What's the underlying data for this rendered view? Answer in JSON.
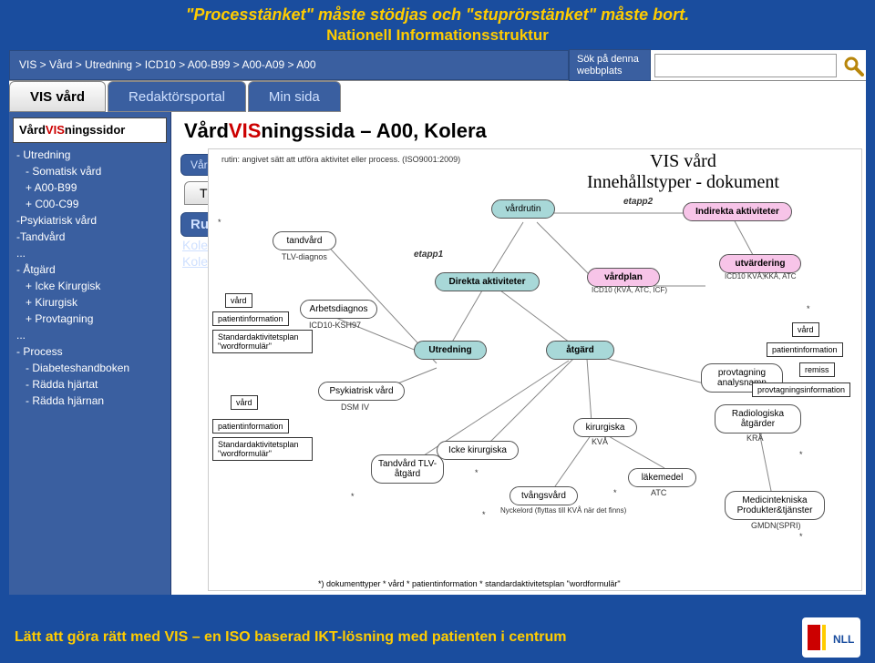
{
  "header": {
    "line1": "\"Processtänket\" måste stödjas och \"stuprörstänket\" måste bort.",
    "line2": "Nationell Informationsstruktur"
  },
  "breadcrumb": "VIS > Vård > Utredning > ICD10 > A00-B99 > A00-A09 > A00",
  "search": {
    "label": "Sök på denna webbplats",
    "value": ""
  },
  "tabs": [
    {
      "label": "VIS vård",
      "active": true
    },
    {
      "label": "Redaktörsportal",
      "active": false
    },
    {
      "label": "Min sida",
      "active": false
    }
  ],
  "sidebar": {
    "title_pre": "Vård",
    "title_mid": "VIS",
    "title_post": "ningssidor",
    "items": [
      {
        "text": "- Utredning",
        "indent": 0
      },
      {
        "text": "- Somatisk vård",
        "indent": 1
      },
      {
        "text": "+ A00-B99",
        "indent": 1
      },
      {
        "text": "+ C00-C99",
        "indent": 1
      },
      {
        "text": "-Psykiatrisk vård",
        "indent": 0
      },
      {
        "text": "-Tandvård",
        "indent": 0
      },
      {
        "text": "...",
        "indent": 0
      },
      {
        "text": "- Åtgärd",
        "indent": 0
      },
      {
        "text": "+ Icke Kirurgisk",
        "indent": 1
      },
      {
        "text": "+ Kirurgisk",
        "indent": 1
      },
      {
        "text": "+ Provtagning",
        "indent": 1
      },
      {
        "text": "...",
        "indent": 0
      },
      {
        "text": "- Process",
        "indent": 0
      },
      {
        "text": "- Diabeteshandboken",
        "indent": 1
      },
      {
        "text": "- Rädda hjärtat",
        "indent": 1
      },
      {
        "text": "- Rädda hjärnan",
        "indent": 1
      }
    ]
  },
  "content": {
    "title_pre": "Vård",
    "title_mid": "VIS",
    "title_post": "ningssida – A00, Kolera",
    "pill_vardfo": "Vårdfö",
    "tab_t": "T",
    "pill_ruti": "Ruti",
    "link_kole1": "Kole",
    "link_kole2": "Kole"
  },
  "diagram": {
    "subtitle": "rutin: angivet sätt att utföra aktivitet eller process. (ISO9001:2009)",
    "title_l1": "VIS vård",
    "title_l2": "Innehållstyper - dokument",
    "nodes": {
      "vardrutin": "vårdrutin",
      "indirekta": "Indirekta aktiviteter",
      "direkta": "Direkta aktiviteter",
      "vardplan": "vårdplan",
      "utvardering": "utvärdering",
      "utredning": "Utredning",
      "atgard": "åtgärd",
      "tandvard": "tandvård",
      "tlvdiag": "TLV-diagnos",
      "arbetsdiag": "Arbetsdiagnos",
      "icd10ksh": "ICD10-KSH97",
      "psyk": "Psykiatrisk vård",
      "dsm": "DSM IV",
      "ickekir": "Icke kirurgiska",
      "kirurg": "kirurgiska",
      "tandatg": "Tandvård TLV- åtgärd",
      "tvang": "tvångsvård",
      "nyckel": "Nyckelord (flyttas till KVÅ när det finns)",
      "lakemedel": "läkemedel",
      "atc": "ATC",
      "kva": "KVÅ",
      "radiolog": "Radiologiska åtgärder",
      "kra": "KRÅ",
      "medtek": "Medicintekniska Produkter&tjänster",
      "gmdn": "GMDN(SPRI)",
      "provtag": "provtagning analysnamn",
      "icd10_1": "ICD10 (KVÅ, ATC, ICF)",
      "icd10_2": "ICD10 KVÅ,KKÅ, ATC"
    },
    "boxes": {
      "vard": "vård",
      "patientinfo": "patientinformation",
      "stdplan": "Standardaktivitetsplan \"wordformulär\"",
      "remiss": "remiss",
      "provinfo": "provtagningsinformation"
    },
    "labels": {
      "etapp1": "etapp1",
      "etapp2": "etapp2",
      "star": "*"
    },
    "footnote": "*) dokumenttyper * vård * patientinformation * standardaktivitetsplan \"wordformulär\""
  },
  "footer": {
    "text": "Lätt att göra rätt med VIS – en ISO baserad IKT-lösning med patienten i centrum",
    "logo_text": "NLL"
  }
}
